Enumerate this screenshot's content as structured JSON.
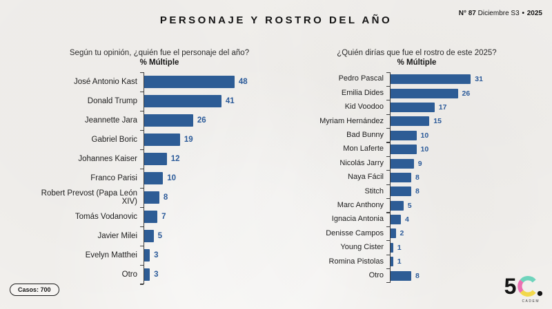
{
  "header": {
    "title": "PERSONAJE Y ROSTRO DEL AÑO",
    "edition_prefix": "N°",
    "edition_number": "87",
    "edition_period": "Diciembre S3",
    "edition_separator": "•",
    "edition_year": "2025"
  },
  "footer": {
    "cases_label": "Casos: 700",
    "logo_number": "5",
    "logo_subtext": "CADEM"
  },
  "colors": {
    "bar": "#2d5c95",
    "value_label": "#2b5a99",
    "background": "#f3f1ee",
    "axis": "#3d3d3d",
    "logo_teal": "#6fd4bc",
    "logo_pink": "#ec6fb2",
    "logo_yellow": "#f2d84b"
  },
  "chart_data": [
    {
      "type": "bar",
      "orientation": "horizontal",
      "title": "Según tu opinión, ¿quién fue el personaje del año?",
      "subtitle": "% Múltiple",
      "unit": "%",
      "grid": false,
      "legend": false,
      "xlim": [
        0,
        55
      ],
      "categories": [
        "José Antonio Kast",
        "Donald Trump",
        "Jeannette Jara",
        "Gabriel Boric",
        "Johannes Kaiser",
        "Franco Parisi",
        "Robert Prevost (Papa León XIV)",
        "Tomás Vodanovic",
        "Javier Milei",
        "Evelyn Matthei",
        "Otro"
      ],
      "values": [
        48,
        41,
        26,
        19,
        12,
        10,
        8,
        7,
        5,
        3,
        3
      ]
    },
    {
      "type": "bar",
      "orientation": "horizontal",
      "title": "¿Quién dirías que fue el rostro de este 2025?",
      "subtitle": "% Múltiple",
      "unit": "%",
      "grid": false,
      "legend": false,
      "xlim": [
        0,
        36
      ],
      "categories": [
        "Pedro Pascal",
        "Emilia Dides",
        "Kid Voodoo",
        "Myriam Hernández",
        "Bad Bunny",
        "Mon Laferte",
        "Nicolás Jarry",
        "Naya Fácil",
        "Stitch",
        "Marc Anthony",
        "Ignacia Antonia",
        "Denisse Campos",
        "Young Cister",
        "Romina Pistolas",
        "Otro"
      ],
      "values": [
        31,
        26,
        17,
        15,
        10,
        10,
        9,
        8,
        8,
        5,
        4,
        2,
        1,
        1,
        8
      ]
    }
  ]
}
